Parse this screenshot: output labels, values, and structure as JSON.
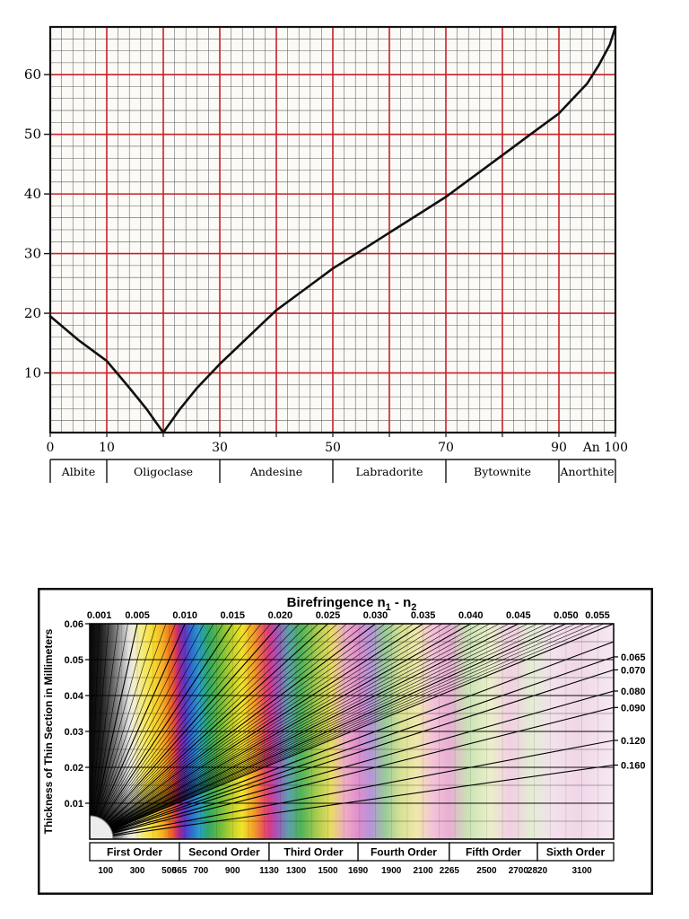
{
  "page": {
    "background": "#ffffff"
  },
  "chart_data": [
    {
      "id": "plagioclase_extinction",
      "type": "line",
      "title": "",
      "x_axis": {
        "min": 0,
        "max": 100,
        "tick_labels": [
          {
            "value": 0,
            "label": "0"
          },
          {
            "value": 10,
            "label": "10"
          },
          {
            "value": 30,
            "label": "30"
          },
          {
            "value": 50,
            "label": "50"
          },
          {
            "value": 70,
            "label": "70"
          },
          {
            "value": 90,
            "label": "90"
          },
          {
            "value": 100,
            "label": "An 100"
          }
        ]
      },
      "y_axis": {
        "min": 0,
        "max": 68,
        "ticks": [
          10,
          20,
          30,
          40,
          50,
          60
        ]
      },
      "grid": {
        "minor_step": 2,
        "major_step": 10,
        "minor_color": "#4d4d4d",
        "major_color": "#c8202a"
      },
      "curve": {
        "color": "#101010",
        "points": [
          [
            0,
            19.5
          ],
          [
            5,
            15.5
          ],
          [
            10,
            12
          ],
          [
            14,
            7.5
          ],
          [
            17,
            4
          ],
          [
            20,
            0
          ],
          [
            23,
            4
          ],
          [
            26,
            7.5
          ],
          [
            30,
            11.5
          ],
          [
            35,
            16
          ],
          [
            40,
            20.5
          ],
          [
            45,
            24
          ],
          [
            50,
            27.5
          ],
          [
            55,
            30.5
          ],
          [
            60,
            33.5
          ],
          [
            65,
            36.5
          ],
          [
            70,
            39.5
          ],
          [
            75,
            43
          ],
          [
            80,
            46.5
          ],
          [
            85,
            50
          ],
          [
            90,
            53.5
          ],
          [
            93,
            56.5
          ],
          [
            95,
            58.5
          ],
          [
            97,
            61.5
          ],
          [
            99,
            65
          ],
          [
            100,
            68
          ]
        ]
      },
      "mineral_zones": [
        {
          "label": "Albite",
          "from": 0,
          "to": 10
        },
        {
          "label": "Oligoclase",
          "from": 10,
          "to": 30
        },
        {
          "label": "Andesine",
          "from": 30,
          "to": 50
        },
        {
          "label": "Labradorite",
          "from": 50,
          "to": 70
        },
        {
          "label": "Bytownite",
          "from": 70,
          "to": 90
        },
        {
          "label": "Anorthite",
          "from": 90,
          "to": 100
        }
      ]
    },
    {
      "id": "michel_levy",
      "type": "heatmap",
      "title": {
        "prefix": "Birefringence n",
        "sub1": "1",
        "mid": " - n",
        "sub2": "2"
      },
      "ylabel": "Thickness of Thin Section in Millimeters",
      "x_axis_nm": {
        "min": 0,
        "max": 3300
      },
      "thickness_axis": {
        "min": 0,
        "max": 0.06,
        "left_ticks": [
          {
            "value": 0.06,
            "label": "0.06"
          },
          {
            "value": 0.05,
            "label": "0.05"
          },
          {
            "value": 0.04,
            "label": "0.04"
          },
          {
            "value": 0.03,
            "label": "0.03"
          },
          {
            "value": 0.02,
            "label": "0.02"
          },
          {
            "value": 0.01,
            "label": "0.01"
          }
        ]
      },
      "top_birefringence_ticks": [
        "0.001",
        "0.005",
        "0.010",
        "0.015",
        "0.020",
        "0.025",
        "0.030",
        "0.035",
        "0.040",
        "0.045",
        "0.050",
        "0.055"
      ],
      "right_birefringence_labels": [
        "0.065",
        "0.070",
        "0.080",
        "0.090",
        "0.120",
        "0.160"
      ],
      "fan_lines_minor_step": 0.001,
      "orders": [
        {
          "label": "First Order",
          "from": 0,
          "to": 565
        },
        {
          "label": "Second Order",
          "from": 565,
          "to": 1130
        },
        {
          "label": "Third Order",
          "from": 1130,
          "to": 1690
        },
        {
          "label": "Fourth Order",
          "from": 1690,
          "to": 2265
        },
        {
          "label": "Fifth Order",
          "from": 2265,
          "to": 2820
        },
        {
          "label": "Sixth Order",
          "from": 2820,
          "to": 3300
        }
      ],
      "retardation_labels": [
        100,
        300,
        500,
        565,
        700,
        900,
        1130,
        1300,
        1500,
        1690,
        1900,
        2100,
        2265,
        2500,
        2700,
        2820,
        3100
      ],
      "color_scale": [
        {
          "nm": 0,
          "color": "#060606"
        },
        {
          "nm": 70,
          "color": "#1c1c1c"
        },
        {
          "nm": 140,
          "color": "#5f5f5f"
        },
        {
          "nm": 200,
          "color": "#a8a8a8"
        },
        {
          "nm": 245,
          "color": "#e2e2e2"
        },
        {
          "nm": 280,
          "color": "#f2eecb"
        },
        {
          "nm": 330,
          "color": "#f5ea7d"
        },
        {
          "nm": 400,
          "color": "#f8dc2e"
        },
        {
          "nm": 460,
          "color": "#f5af24"
        },
        {
          "nm": 510,
          "color": "#ee6f1e"
        },
        {
          "nm": 545,
          "color": "#d8345f"
        },
        {
          "nm": 565,
          "color": "#a02894"
        },
        {
          "nm": 595,
          "color": "#6234c0"
        },
        {
          "nm": 640,
          "color": "#2e6ad1"
        },
        {
          "nm": 690,
          "color": "#2b9ec7"
        },
        {
          "nm": 745,
          "color": "#2da868"
        },
        {
          "nm": 820,
          "color": "#6cbc3c"
        },
        {
          "nm": 900,
          "color": "#c3d22b"
        },
        {
          "nm": 960,
          "color": "#f2e32b"
        },
        {
          "nm": 1030,
          "color": "#f3a226"
        },
        {
          "nm": 1090,
          "color": "#ea5a52"
        },
        {
          "nm": 1130,
          "color": "#d83a86"
        },
        {
          "nm": 1180,
          "color": "#a455bb"
        },
        {
          "nm": 1250,
          "color": "#5d9fae"
        },
        {
          "nm": 1330,
          "color": "#4fb35a"
        },
        {
          "nm": 1430,
          "color": "#a8cc4d"
        },
        {
          "nm": 1520,
          "color": "#e8dc63"
        },
        {
          "nm": 1610,
          "color": "#efacc6"
        },
        {
          "nm": 1690,
          "color": "#df8fcd"
        },
        {
          "nm": 1770,
          "color": "#b695d9"
        },
        {
          "nm": 1860,
          "color": "#99cb9a"
        },
        {
          "nm": 1960,
          "color": "#d8e194"
        },
        {
          "nm": 2060,
          "color": "#f0e8ab"
        },
        {
          "nm": 2160,
          "color": "#f3c3d8"
        },
        {
          "nm": 2265,
          "color": "#e9aed4"
        },
        {
          "nm": 2380,
          "color": "#c9e2b4"
        },
        {
          "nm": 2520,
          "color": "#eaf0c9"
        },
        {
          "nm": 2650,
          "color": "#f2cfe3"
        },
        {
          "nm": 2780,
          "color": "#e3ecd3"
        },
        {
          "nm": 2920,
          "color": "#f4e0ed"
        },
        {
          "nm": 3080,
          "color": "#f0d7e8"
        },
        {
          "nm": 3300,
          "color": "#f6e9f2"
        }
      ]
    }
  ]
}
